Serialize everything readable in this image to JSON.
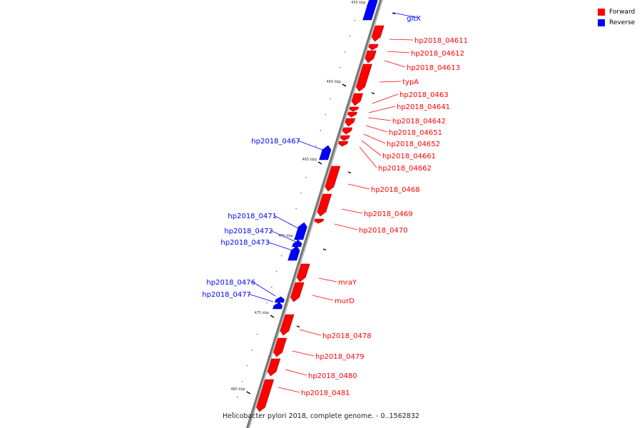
{
  "legend": {
    "forward_label": "Forward",
    "reverse_label": "Reverse",
    "forward_color": "#ff0000",
    "reverse_color": "#0000ff"
  },
  "caption": "Helicobacter pylori 2018, complete genome. - 0..1562832",
  "ticks": [
    {
      "label": "455 kbp"
    },
    {
      "label": "460 kbp"
    },
    {
      "label": "465 kbp"
    },
    {
      "label": "470 kbp"
    },
    {
      "label": "475 kbp"
    },
    {
      "label": "480 kbp"
    }
  ],
  "genes": [
    {
      "name": "gltX",
      "strand": "reverse"
    },
    {
      "name": "hp2018_04611",
      "strand": "forward"
    },
    {
      "name": "hp2018_04612",
      "strand": "forward"
    },
    {
      "name": "hp2018_04613",
      "strand": "forward"
    },
    {
      "name": "typA",
      "strand": "forward"
    },
    {
      "name": "hp2018_0463",
      "strand": "forward"
    },
    {
      "name": "hp2018_04641",
      "strand": "forward"
    },
    {
      "name": "hp2018_04642",
      "strand": "forward"
    },
    {
      "name": "hp2018_04651",
      "strand": "forward"
    },
    {
      "name": "hp2018_04652",
      "strand": "forward"
    },
    {
      "name": "hp2018_04661",
      "strand": "forward"
    },
    {
      "name": "hp2018_04662",
      "strand": "forward"
    },
    {
      "name": "hp2018_0467",
      "strand": "reverse"
    },
    {
      "name": "hp2018_0468",
      "strand": "forward"
    },
    {
      "name": "hp2018_0469",
      "strand": "forward"
    },
    {
      "name": "hp2018_0470",
      "strand": "forward"
    },
    {
      "name": "hp2018_0471",
      "strand": "reverse"
    },
    {
      "name": "hp2018_0472",
      "strand": "reverse"
    },
    {
      "name": "hp2018_0473",
      "strand": "reverse"
    },
    {
      "name": "mraY",
      "strand": "forward"
    },
    {
      "name": "murD",
      "strand": "forward"
    },
    {
      "name": "hp2018_0476",
      "strand": "reverse"
    },
    {
      "name": "hp2018_0477",
      "strand": "reverse"
    },
    {
      "name": "hp2018_0478",
      "strand": "forward"
    },
    {
      "name": "hp2018_0479",
      "strand": "forward"
    },
    {
      "name": "hp2018_0480",
      "strand": "forward"
    },
    {
      "name": "hp2018_0481",
      "strand": "forward"
    }
  ]
}
